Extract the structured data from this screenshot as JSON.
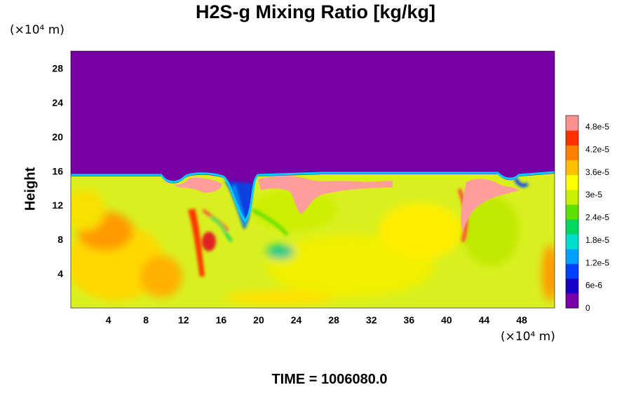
{
  "chart_data": {
    "type": "heatmap",
    "title": "H2S-g Mixing Ratio [kg/kg]",
    "ylabel": "Height",
    "xunit": "(×10⁴ m)",
    "yunit": "(×10⁴ m)",
    "xlim": [
      0,
      51.5
    ],
    "ylim": [
      0,
      30
    ],
    "x_ticks": [
      4,
      8,
      12,
      16,
      20,
      24,
      28,
      32,
      36,
      40,
      44,
      48
    ],
    "y_ticks": [
      4,
      8,
      12,
      16,
      20,
      24,
      28
    ],
    "colorbar": {
      "ticks": [
        "0",
        "6e-6",
        "1.2e-5",
        "1.8e-5",
        "2.4e-5",
        "3e-5",
        "3.6e-5",
        "4.2e-5",
        "4.8e-5"
      ],
      "range": [
        0,
        5.1e-05
      ],
      "colors": [
        "#7a00a8",
        "#1a00c8",
        "#0040ff",
        "#00a0ff",
        "#00e0d0",
        "#00d860",
        "#60e000",
        "#c8f000",
        "#ffff00",
        "#ffc000",
        "#ff8000",
        "#ff3000",
        "#ff9090"
      ]
    },
    "top_region_value": 0,
    "tropopause_height": 15.5,
    "description_regions": [
      {
        "value": "4.9e-5",
        "x": [
          10,
          50
        ],
        "y": [
          12,
          15.5
        ]
      },
      {
        "value": "3.6e-5",
        "x": [
          0,
          51.5
        ],
        "y": [
          0,
          15.5
        ]
      }
    ]
  },
  "time_label": "TIME = 1006080.0"
}
